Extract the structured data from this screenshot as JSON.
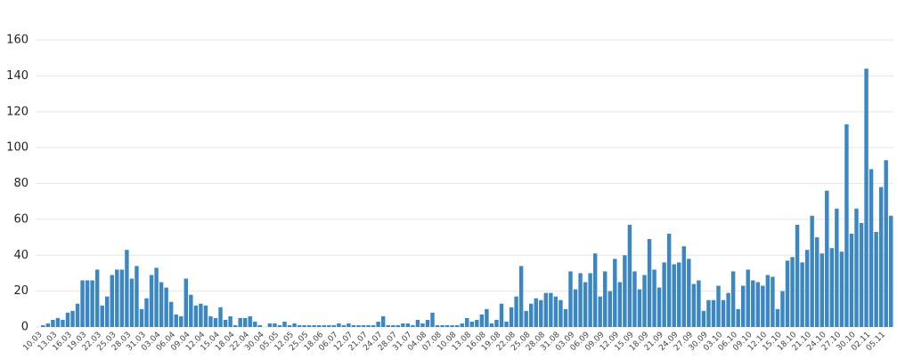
{
  "chart_data": {
    "type": "bar",
    "color": "#3a87c4",
    "grid": true,
    "ylim": [
      0,
      160
    ],
    "yticks": [
      0,
      20,
      40,
      60,
      80,
      100,
      120,
      140,
      160
    ],
    "categories": [
      "10.03",
      null,
      null,
      "13.03",
      null,
      null,
      "16.03",
      null,
      null,
      "19.03",
      null,
      null,
      "22.03",
      null,
      null,
      "25.03",
      null,
      null,
      "28.03",
      null,
      null,
      "31.03",
      null,
      null,
      "03.04",
      null,
      null,
      "06.04",
      null,
      null,
      "09.04",
      null,
      null,
      "12.04",
      null,
      null,
      "15.04",
      null,
      null,
      "18.04",
      null,
      null,
      "22.04",
      null,
      null,
      "30.04",
      null,
      null,
      "05.05",
      null,
      null,
      "12.05",
      null,
      null,
      "25.05",
      null,
      null,
      "18.06",
      null,
      null,
      "06.07",
      null,
      null,
      "12.07",
      null,
      null,
      "21.07",
      null,
      null,
      "24.07",
      null,
      null,
      "28.07",
      null,
      null,
      "31.07",
      null,
      null,
      "04.08",
      null,
      null,
      "07.08",
      null,
      null,
      "10.08",
      null,
      null,
      "13.08",
      null,
      null,
      "16.08",
      null,
      null,
      "19.08",
      null,
      null,
      "22.08",
      null,
      null,
      "25.08",
      null,
      null,
      "28.08",
      null,
      null,
      "31.08",
      null,
      null,
      "03.09",
      null,
      null,
      "06.09",
      null,
      null,
      "09.09",
      null,
      null,
      "12.09",
      null,
      null,
      "15.09",
      null,
      null,
      "18.09",
      null,
      null,
      "21.09",
      null,
      null,
      "24.09",
      null,
      null,
      "27.09",
      null,
      null,
      "30.09",
      null,
      null,
      "03.10",
      null,
      null,
      "06.10",
      null,
      null,
      "09.10",
      null,
      null,
      "12.10",
      null,
      null,
      "15.10",
      null,
      null,
      "18.10",
      null,
      null,
      "21.10",
      null,
      null,
      "24.10",
      null,
      null,
      "27.10",
      null,
      null,
      "30.10",
      null,
      null,
      "02.11",
      null,
      null,
      "05.11",
      null,
      null
    ],
    "values": [
      0,
      1,
      2,
      4,
      5,
      4,
      8,
      9,
      13,
      26,
      26,
      26,
      32,
      12,
      17,
      29,
      32,
      32,
      43,
      27,
      34,
      10,
      16,
      29,
      33,
      25,
      22,
      14,
      7,
      6,
      27,
      18,
      12,
      13,
      12,
      6,
      5,
      11,
      4,
      6,
      1,
      5,
      5,
      6,
      3,
      1,
      0,
      2,
      2,
      1,
      3,
      1,
      2,
      1,
      1,
      1,
      1,
      1,
      1,
      1,
      1,
      2,
      1,
      2,
      1,
      1,
      1,
      1,
      1,
      3,
      6,
      1,
      1,
      1,
      2,
      2,
      1,
      4,
      2,
      4,
      8,
      1,
      1,
      1,
      1,
      1,
      2,
      5,
      3,
      4,
      7,
      10,
      2,
      4,
      13,
      3,
      11,
      17,
      34,
      9,
      13,
      16,
      15,
      19,
      19,
      17,
      15,
      10,
      31,
      21,
      30,
      25,
      30,
      41,
      17,
      31,
      20,
      38,
      25,
      40,
      57,
      31,
      21,
      29,
      49,
      32,
      22,
      36,
      52,
      35,
      36,
      45,
      38,
      24,
      26,
      9,
      15,
      15,
      23,
      15,
      19,
      31,
      10,
      23,
      32,
      26,
      25,
      23,
      29,
      28,
      10,
      20,
      37,
      39,
      57,
      36,
      43,
      62,
      50,
      41,
      76,
      44,
      66,
      42,
      113,
      52,
      66,
      58,
      144,
      88,
      53,
      78,
      93,
      62
    ]
  }
}
